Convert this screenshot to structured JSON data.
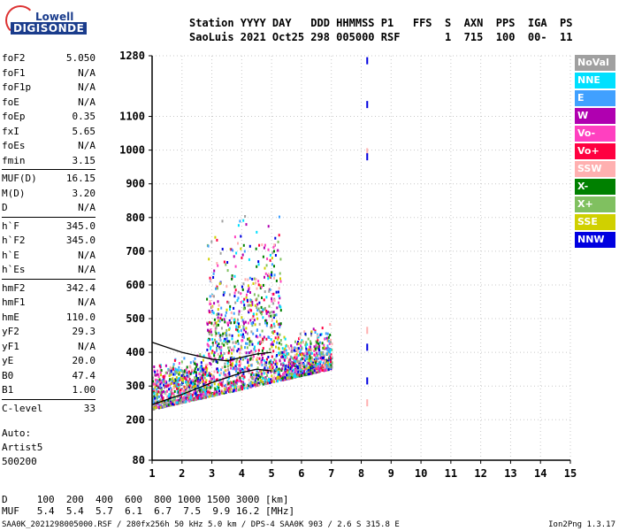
{
  "logo": {
    "line1": "Lowell",
    "line2": "DIGISONDE"
  },
  "header": {
    "labels": "Station YYYY DAY   DDD HHMMSS P1   FFS  S  AXN  PPS  IGA  PS",
    "values": "SaoLuis 2021 Oct25 298 005000 RSF       1  715  100  00-  11"
  },
  "params": [
    {
      "k": "foF2",
      "v": "5.050"
    },
    {
      "k": "foF1",
      "v": "N/A"
    },
    {
      "k": "foF1p",
      "v": "N/A"
    },
    {
      "k": "foE",
      "v": "N/A"
    },
    {
      "k": "foEp",
      "v": "0.35"
    },
    {
      "k": "fxI",
      "v": "5.65"
    },
    {
      "k": "foEs",
      "v": "N/A"
    },
    {
      "k": "fmin",
      "v": "3.15"
    },
    {
      "k": "MUF(D)",
      "v": "16.15"
    },
    {
      "k": "M(D)",
      "v": "3.20"
    },
    {
      "k": "D",
      "v": "N/A"
    },
    {
      "k": "h`F",
      "v": "345.0"
    },
    {
      "k": "h`F2",
      "v": "345.0"
    },
    {
      "k": "h`E",
      "v": "N/A"
    },
    {
      "k": "h`Es",
      "v": "N/A"
    },
    {
      "k": "hmF2",
      "v": "342.4"
    },
    {
      "k": "hmF1",
      "v": "N/A"
    },
    {
      "k": "hmE",
      "v": "110.0"
    },
    {
      "k": "yF2",
      "v": "29.3"
    },
    {
      "k": "yF1",
      "v": "N/A"
    },
    {
      "k": "yE",
      "v": "20.0"
    },
    {
      "k": "B0",
      "v": "47.4"
    },
    {
      "k": "B1",
      "v": "1.00"
    },
    {
      "k": "C-level",
      "v": "33"
    }
  ],
  "auto": {
    "l1": "Auto:",
    "l2": "Artist5",
    "l3": "500200"
  },
  "muf_table": {
    "row1": "D     100  200  400  600  800 1000 1500 3000 [km]",
    "row2": "MUF   5.4  5.4  5.7  6.1  6.7  7.5  9.9 16.2 [MHz]"
  },
  "footer": {
    "left": "SAA0K_2021298005000.RSF / 280fx256h 50 kHz 5.0 km / DPS-4 SAA0K 903 / 2.6 S 315.8 E",
    "right": "Ion2Png 1.3.17"
  },
  "legend": [
    {
      "label": "NoVal",
      "color": "#a0a0a0"
    },
    {
      "label": "NNE",
      "color": "#00e0ff"
    },
    {
      "label": "E",
      "color": "#40a0ff"
    },
    {
      "label": "W",
      "color": "#b000b0"
    },
    {
      "label": "Vo-",
      "color": "#ff40c0"
    },
    {
      "label": "Vo+",
      "color": "#ff0040"
    },
    {
      "label": "SSW",
      "color": "#ffb0b0"
    },
    {
      "label": "X-",
      "color": "#008000"
    },
    {
      "label": "X+",
      "color": "#80c060"
    },
    {
      "label": "SSE",
      "color": "#d0d000"
    },
    {
      "label": "NNW",
      "color": "#0000e0"
    }
  ],
  "chart_data": {
    "type": "scatter",
    "title": "",
    "xlabel": "",
    "ylabel": "",
    "xlim": [
      1,
      15
    ],
    "ylim": [
      80,
      1280
    ],
    "x_ticks": [
      1,
      2,
      3,
      4,
      5,
      6,
      7,
      8,
      9,
      10,
      11,
      12,
      13,
      14,
      15
    ],
    "y_ticks": [
      80,
      200,
      300,
      400,
      500,
      600,
      700,
      800,
      900,
      1000,
      1100,
      1280
    ],
    "grid": true,
    "echo_cloud": {
      "freq_range_mhz": [
        1.0,
        7.0
      ],
      "height_range_km": [
        220,
        810
      ],
      "peak_freq_mhz": 4.5
    },
    "echo_line_8_2mhz": [
      {
        "x": 8.2,
        "y": 1260,
        "color": "#0000e0"
      },
      {
        "x": 8.2,
        "y": 1130,
        "color": "#0000e0"
      },
      {
        "x": 8.2,
        "y": 990,
        "color": "#ffb0b0"
      },
      {
        "x": 8.2,
        "y": 975,
        "color": "#0000e0"
      },
      {
        "x": 8.2,
        "y": 460,
        "color": "#ffb0b0"
      },
      {
        "x": 8.2,
        "y": 410,
        "color": "#0000e0"
      },
      {
        "x": 8.2,
        "y": 310,
        "color": "#0000e0"
      },
      {
        "x": 8.2,
        "y": 245,
        "color": "#ffb0b0"
      }
    ],
    "trace_lower": {
      "x": [
        1.0,
        2.0,
        3.0,
        4.0,
        4.5,
        5.0
      ],
      "y": [
        245,
        275,
        310,
        340,
        350,
        345
      ]
    },
    "trace_upper": {
      "x": [
        1.0,
        2.0,
        3.0,
        3.5,
        4.0,
        4.5,
        5.0
      ],
      "y": [
        430,
        400,
        380,
        375,
        385,
        395,
        400
      ]
    }
  }
}
